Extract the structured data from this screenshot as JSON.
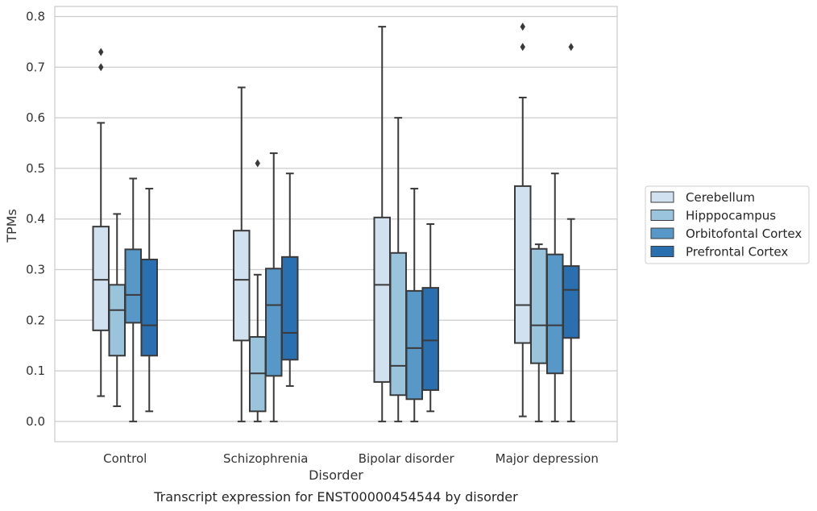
{
  "chart_data": {
    "type": "box",
    "caption": "Transcript expression for ENST00000454544 by disorder",
    "xlabel": "Disorder",
    "ylabel": "TPMs",
    "ylim": [
      -0.04,
      0.82
    ],
    "yticks": [
      0.0,
      0.1,
      0.2,
      0.3,
      0.4,
      0.5,
      0.6,
      0.7,
      0.8
    ],
    "ytick_labels": [
      "0.0",
      "0.1",
      "0.2",
      "0.3",
      "0.4",
      "0.5",
      "0.6",
      "0.7",
      "0.8"
    ],
    "grid": "horizontal",
    "legend_position": "right",
    "categories": [
      "Control",
      "Schizophrenia",
      "Bipolar disorder",
      "Major depression"
    ],
    "series": [
      {
        "name": "Cerebellum",
        "color": "#d2e1f0",
        "boxes": [
          {
            "whislo": 0.05,
            "q1": 0.18,
            "med": 0.28,
            "q3": 0.385,
            "whishi": 0.59,
            "fliers": [
              0.7,
              0.73
            ]
          },
          {
            "whislo": 0.0,
            "q1": 0.16,
            "med": 0.28,
            "q3": 0.377,
            "whishi": 0.66,
            "fliers": []
          },
          {
            "whislo": 0.0,
            "q1": 0.078,
            "med": 0.27,
            "q3": 0.403,
            "whishi": 0.78,
            "fliers": []
          },
          {
            "whislo": 0.01,
            "q1": 0.155,
            "med": 0.23,
            "q3": 0.465,
            "whishi": 0.64,
            "fliers": [
              0.74,
              0.78
            ]
          }
        ]
      },
      {
        "name": "Hipppocampus",
        "color": "#9ac4dc",
        "boxes": [
          {
            "whislo": 0.03,
            "q1": 0.13,
            "med": 0.22,
            "q3": 0.27,
            "whishi": 0.41,
            "fliers": []
          },
          {
            "whislo": 0.0,
            "q1": 0.02,
            "med": 0.095,
            "q3": 0.167,
            "whishi": 0.29,
            "fliers": [
              0.51
            ]
          },
          {
            "whislo": 0.0,
            "q1": 0.052,
            "med": 0.11,
            "q3": 0.333,
            "whishi": 0.6,
            "fliers": []
          },
          {
            "whislo": 0.0,
            "q1": 0.115,
            "med": 0.19,
            "q3": 0.341,
            "whishi": 0.35,
            "fliers": []
          }
        ]
      },
      {
        "name": "Orbitofontal Cortex",
        "color": "#5898c8",
        "boxes": [
          {
            "whislo": 0.0,
            "q1": 0.195,
            "med": 0.25,
            "q3": 0.34,
            "whishi": 0.48,
            "fliers": []
          },
          {
            "whislo": 0.0,
            "q1": 0.09,
            "med": 0.23,
            "q3": 0.302,
            "whishi": 0.53,
            "fliers": []
          },
          {
            "whislo": 0.0,
            "q1": 0.044,
            "med": 0.145,
            "q3": 0.258,
            "whishi": 0.46,
            "fliers": []
          },
          {
            "whislo": 0.0,
            "q1": 0.095,
            "med": 0.19,
            "q3": 0.33,
            "whishi": 0.49,
            "fliers": []
          }
        ]
      },
      {
        "name": "Prefrontal Cortex",
        "color": "#2a6fb0",
        "boxes": [
          {
            "whislo": 0.02,
            "q1": 0.13,
            "med": 0.19,
            "q3": 0.32,
            "whishi": 0.46,
            "fliers": []
          },
          {
            "whislo": 0.07,
            "q1": 0.122,
            "med": 0.175,
            "q3": 0.325,
            "whishi": 0.49,
            "fliers": []
          },
          {
            "whislo": 0.02,
            "q1": 0.062,
            "med": 0.16,
            "q3": 0.264,
            "whishi": 0.39,
            "fliers": []
          },
          {
            "whislo": 0.0,
            "q1": 0.165,
            "med": 0.26,
            "q3": 0.307,
            "whishi": 0.4,
            "fliers": [
              0.74
            ]
          }
        ]
      }
    ]
  }
}
